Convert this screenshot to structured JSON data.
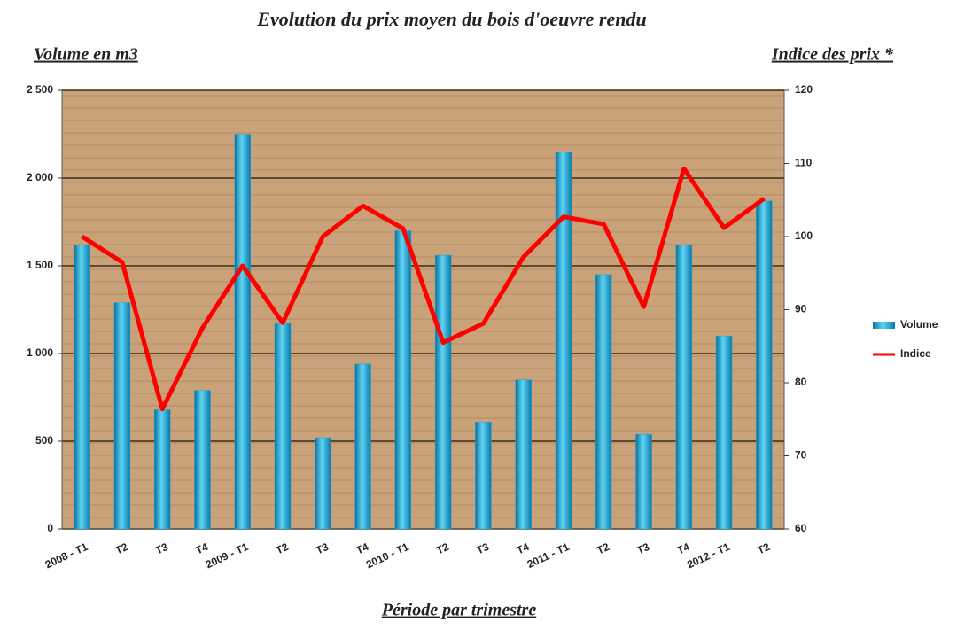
{
  "chart_data": {
    "type": "combo",
    "title": "Evolution du prix moyen du bois d'oeuvre rendu",
    "y_label": "Volume en m3",
    "y2_label": "Indice des prix *",
    "x_label": "Période par trimestre",
    "categories": [
      "2008 - T1",
      "T2",
      "T3",
      "T4",
      "2009 - T1",
      "T2",
      "T3",
      "T4",
      "2010 - T1",
      "T2",
      "T3",
      "T4",
      "2011 - T1",
      "T2",
      "T3",
      "T4",
      "2012 - T1",
      "T2"
    ],
    "series": [
      {
        "name": "Volume",
        "color": "#1fa8d8",
        "values": [
          1620,
          1290,
          680,
          790,
          2250,
          1170,
          520,
          940,
          1700,
          1560,
          610,
          850,
          2150,
          1450,
          540,
          1620,
          1100,
          1870
        ]
      },
      {
        "name": "Indice",
        "color": "#ff0000",
        "axis": "y2",
        "values": [
          100,
          96.5,
          76.4,
          87.5,
          96,
          88.2,
          100,
          104.2,
          101.1,
          85.5,
          88.1,
          97.2,
          102.7,
          101.7,
          90.4,
          109.3,
          101.2,
          105.2
        ]
      }
    ],
    "ylim": [
      0,
      2500
    ],
    "yticks": [
      0,
      500,
      {
        "value": 1000,
        "label": "1 000"
      },
      {
        "value": 1500,
        "label": "1 500"
      },
      {
        "value": 2000,
        "label": "2 000"
      },
      {
        "value": 2500,
        "label": "2 500"
      }
    ],
    "y2lim": [
      60,
      120
    ],
    "y2ticks": [
      60,
      70,
      80,
      90,
      100,
      110,
      120
    ],
    "grid": true,
    "legend": "right"
  }
}
